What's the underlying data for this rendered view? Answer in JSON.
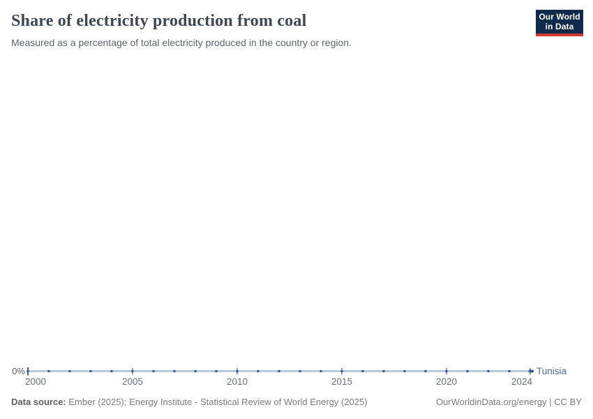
{
  "header": {
    "title": "Share of electricity production from coal",
    "subtitle": "Measured as a percentage of total electricity produced in the country or region.",
    "logo": {
      "line1": "Our World",
      "line2": "in Data"
    }
  },
  "chart_data": {
    "type": "line",
    "title": "Share of electricity production from coal",
    "subtitle": "Measured as a percentage of total electricity produced in the country or region.",
    "x": [
      2000,
      2001,
      2002,
      2003,
      2004,
      2005,
      2006,
      2007,
      2008,
      2009,
      2010,
      2011,
      2012,
      2013,
      2014,
      2015,
      2016,
      2017,
      2018,
      2019,
      2020,
      2021,
      2022,
      2023,
      2024
    ],
    "series": [
      {
        "name": "Tunisia",
        "color": "#4d6ba2",
        "values": [
          0,
          0,
          0,
          0,
          0,
          0,
          0,
          0,
          0,
          0,
          0,
          0,
          0,
          0,
          0,
          0,
          0,
          0,
          0,
          0,
          0,
          0,
          0,
          0,
          0
        ]
      }
    ],
    "x_ticks": [
      2000,
      2005,
      2010,
      2015,
      2020,
      2024
    ],
    "x_tick_labels": [
      "2000",
      "2005",
      "2010",
      "2015",
      "2020",
      "2024"
    ],
    "y_tick_labels": [
      "0%"
    ],
    "xlim": [
      2000,
      2024
    ],
    "ylim": [
      0,
      null
    ],
    "grid": false,
    "legend_position": "end-of-line-label"
  },
  "axis": {
    "y_zero_label": "0%",
    "entity_label": "Tunisia"
  },
  "footer": {
    "source_label": "Data source:",
    "source_text": " Ember (2025); Energy Institute - Statistical Review of World Energy (2025)",
    "right_text": "OurWorldinData.org/energy | CC BY"
  },
  "colors": {
    "line": "#a8bddc",
    "marker": "#3a5b94",
    "tick": "#46618f",
    "axis_text": "#68717d",
    "entity_label": "#4d6ba2",
    "logo_bg": "#102a4c",
    "logo_red": "#d0392e"
  }
}
